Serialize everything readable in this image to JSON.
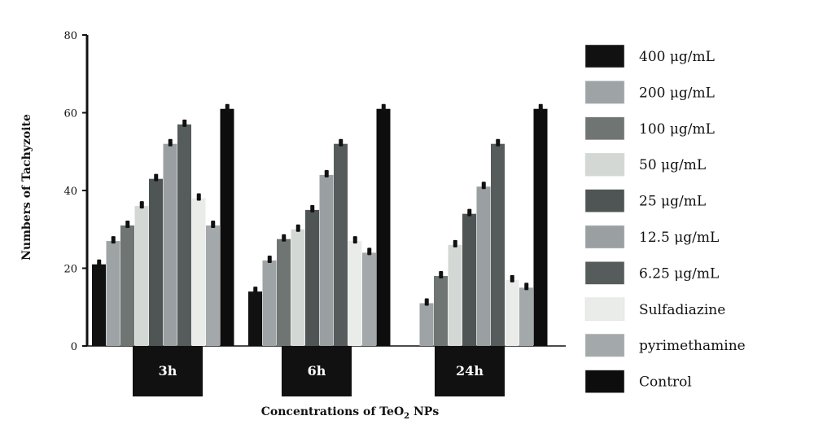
{
  "chart_data": {
    "type": "bar",
    "title": "",
    "xlabel_main": "Concentrations of TeO",
    "xlabel_sub": "2",
    "xlabel_tail": " NPs",
    "ylabel": "Numbers of Tachyzoite",
    "ylim": [
      0,
      80
    ],
    "yticks": [
      "0",
      "20",
      "40",
      "60",
      "80"
    ],
    "categories": [
      "3h",
      "6h",
      "24h"
    ],
    "legend_position": "right",
    "error_bars": true,
    "series": [
      {
        "name": "400 μg/mL",
        "color": "#111111",
        "values": [
          21,
          14,
          null
        ]
      },
      {
        "name": "200 μg/mL",
        "color": "#9ea3a6",
        "values": [
          27,
          22,
          11
        ]
      },
      {
        "name": "100 μg/mL",
        "color": "#6f7572",
        "values": [
          31,
          27.5,
          18
        ]
      },
      {
        "name": "50 μg/mL",
        "color": "#d4d8d5",
        "values": [
          36,
          30,
          26
        ]
      },
      {
        "name": "25 μg/mL",
        "color": "#4f5554",
        "values": [
          43,
          35,
          34
        ]
      },
      {
        "name": "12.5 μg/mL",
        "color": "#9aa0a2",
        "values": [
          52,
          44,
          41
        ]
      },
      {
        "name": "6.25 μg/mL",
        "color": "#565c5b",
        "values": [
          57,
          52,
          52
        ]
      },
      {
        "name": "Sulfadiazine",
        "color": "#eaecea",
        "values": [
          38,
          27,
          17
        ]
      },
      {
        "name": "pyrimethamine",
        "color": "#a3a8aa",
        "values": [
          31,
          24,
          15
        ]
      },
      {
        "name": "Control",
        "color": "#0d0d0d",
        "values": [
          61,
          61,
          61
        ]
      }
    ]
  }
}
